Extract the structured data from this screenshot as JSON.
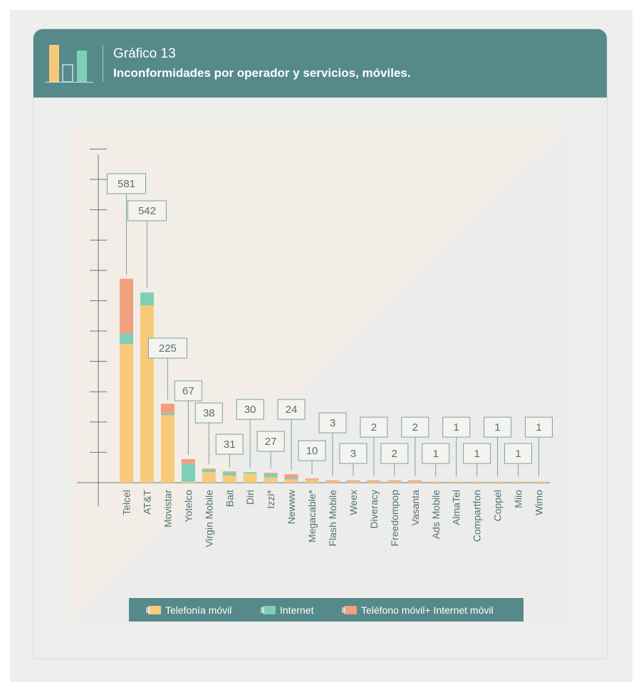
{
  "header": {
    "title": "Gráfico 13",
    "subtitle": "Inconformidades por operador y servicios, móviles."
  },
  "colors": {
    "header": "#56898a",
    "telefonia": "#f9c97a",
    "internet": "#7ecfb5",
    "combo": "#f0a07c"
  },
  "legend": {
    "items": [
      {
        "label": "Telefonía móvil",
        "icon": "phone-icon"
      },
      {
        "label": "Internet",
        "icon": "wifi-icon"
      },
      {
        "label": "Teléfono móvil+ Internet móvil",
        "icon": "phone-wifi-icon"
      }
    ]
  },
  "chart_data": {
    "type": "bar",
    "stacked": true,
    "title": "Inconformidades por operador y servicios, móviles.",
    "categories": [
      "Telcel",
      "AT&T",
      "Movistar",
      "Yotelco",
      "Virgin Mobile",
      "Bait",
      "Diri",
      "Izzi*",
      "Newww",
      "Megacable*",
      "Flash Mobile",
      "Weex",
      "Diveracy",
      "Freedompop",
      "Vasanta",
      "Ads Mobile",
      "AlmaTel",
      "Compartfon",
      "Coppel",
      "Miio",
      "Wimo"
    ],
    "totals": [
      581,
      542,
      225,
      67,
      38,
      31,
      30,
      27,
      24,
      10,
      3,
      3,
      2,
      2,
      2,
      1,
      1,
      1,
      1,
      1,
      1
    ],
    "series": [
      {
        "name": "Telefonía móvil",
        "values": [
          395,
          505,
          192,
          3,
          30,
          20,
          26,
          15,
          9,
          9,
          2,
          2,
          1,
          1,
          1,
          1,
          1,
          1,
          1,
          1,
          1
        ]
      },
      {
        "name": "Internet",
        "values": [
          30,
          37,
          5,
          51,
          7,
          9,
          4,
          10,
          4,
          0,
          0,
          0,
          0,
          0,
          0,
          0,
          0,
          0,
          0,
          0,
          0
        ]
      },
      {
        "name": "Teléfono móvil+ Internet móvil",
        "values": [
          156,
          0,
          28,
          13,
          1,
          2,
          0,
          2,
          11,
          1,
          1,
          1,
          1,
          1,
          1,
          0,
          0,
          0,
          0,
          0,
          0
        ]
      }
    ],
    "ylim": [
      0,
      720
    ],
    "grid": false,
    "legend_position": "bottom"
  }
}
